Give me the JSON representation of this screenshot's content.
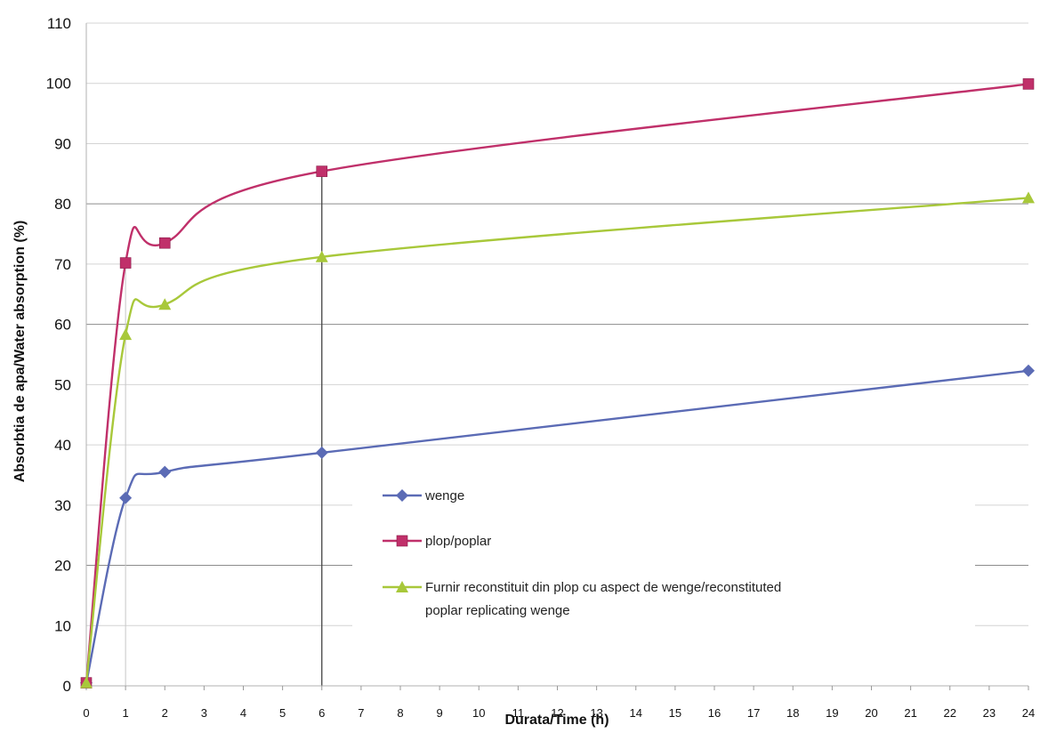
{
  "chart_data": {
    "type": "line",
    "title": "",
    "xlabel": "Durata/Time (h)",
    "ylabel": "Absorbtia de apa/Water absorption (%)",
    "xlim": [
      0,
      24
    ],
    "ylim": [
      0,
      110
    ],
    "x_ticks": [
      0,
      1,
      2,
      3,
      4,
      5,
      6,
      7,
      8,
      9,
      10,
      11,
      12,
      13,
      14,
      15,
      16,
      17,
      18,
      19,
      20,
      21,
      22,
      23,
      24
    ],
    "y_ticks": [
      0,
      10,
      20,
      30,
      40,
      50,
      60,
      70,
      80,
      90,
      100,
      110
    ],
    "grid": "horizontal",
    "legend_position": "center",
    "x": [
      0,
      1,
      2,
      6,
      24
    ],
    "series": [
      {
        "name": "wenge",
        "color": "#5b6bb5",
        "marker": "diamond",
        "values": [
          0.5,
          31.2,
          35.5,
          38.7,
          52.3
        ]
      },
      {
        "name": "plop/poplar",
        "color": "#c0306a",
        "marker": "square",
        "values": [
          0.5,
          70.2,
          73.5,
          85.4,
          99.9
        ]
      },
      {
        "name": "Furnir reconstituit din plop cu aspect de wenge/reconstituted poplar replicating wenge",
        "color": "#a8c83a",
        "marker": "triangle",
        "values": [
          0.5,
          58.3,
          63.3,
          71.2,
          81.0
        ]
      }
    ]
  }
}
